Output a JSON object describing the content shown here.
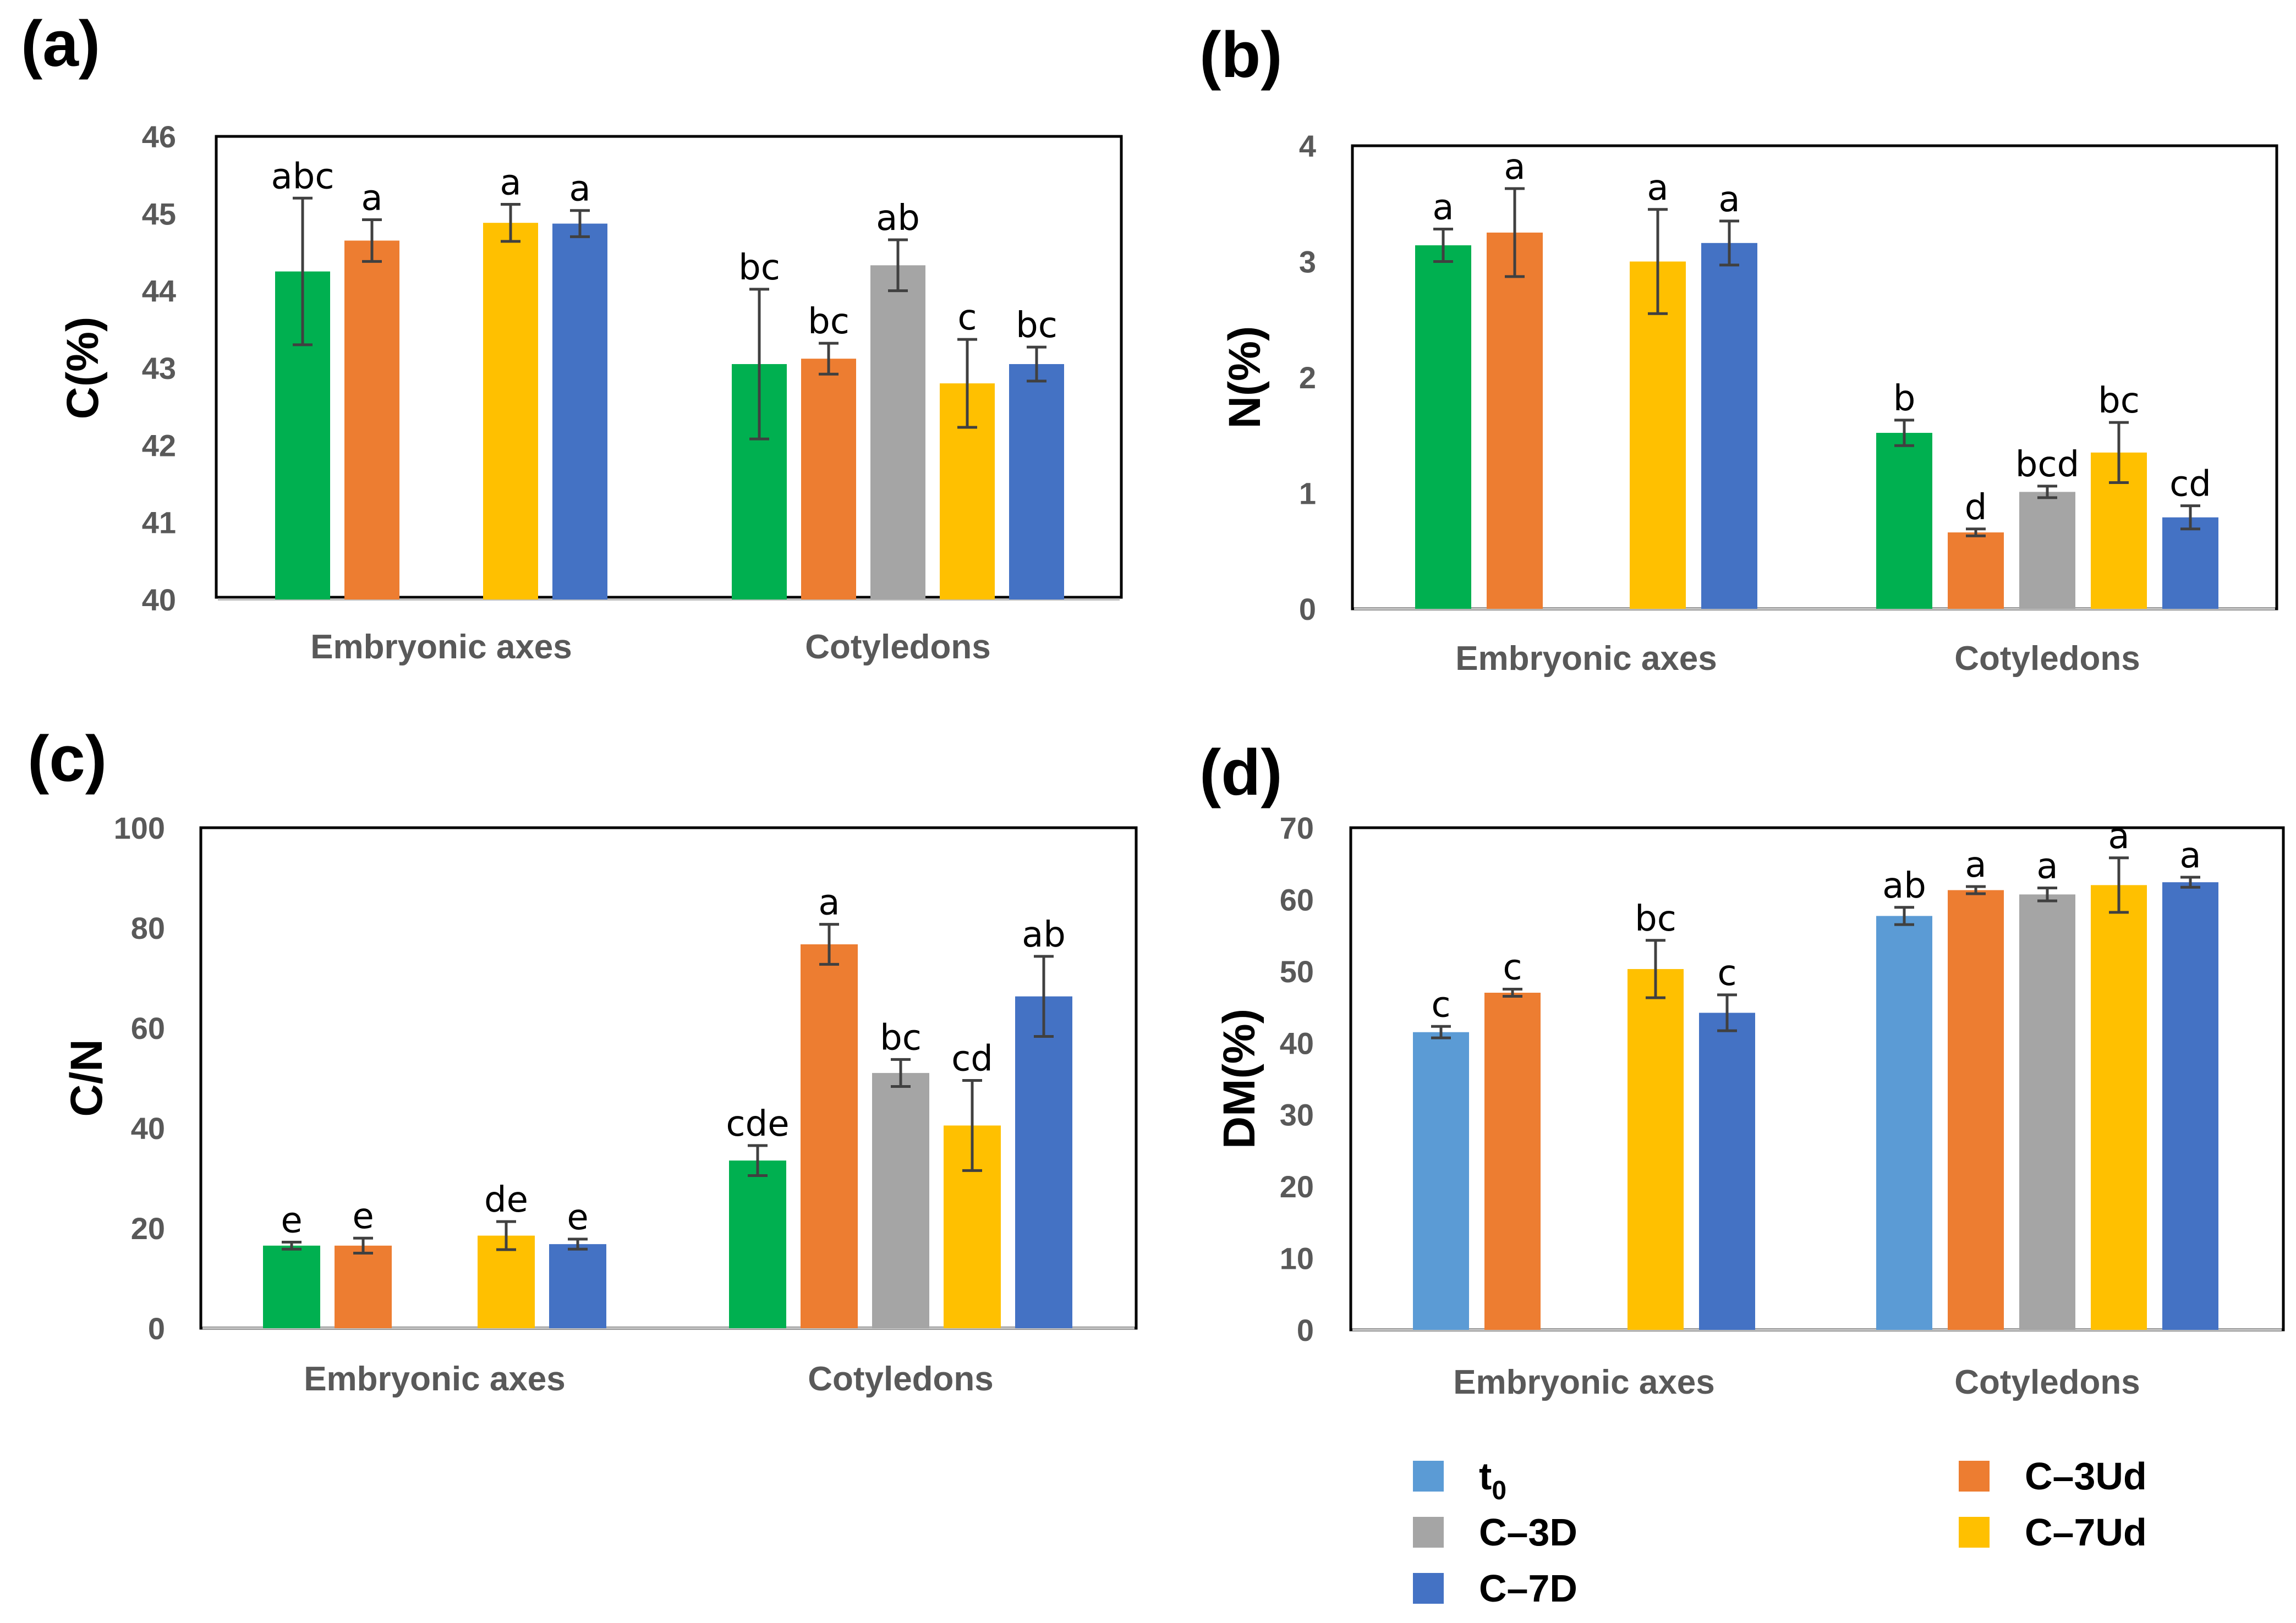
{
  "legend": {
    "items": [
      {
        "key": "t0",
        "label": "t",
        "sub": "0",
        "color": "#5B9BD5"
      },
      {
        "key": "c3d",
        "label": "C–3D",
        "sub": "",
        "color": "#A5A5A5"
      },
      {
        "key": "c7d",
        "label": "C–7D",
        "sub": "",
        "color": "#4472C4"
      },
      {
        "key": "c3ud",
        "label": "C–3Ud",
        "sub": "",
        "color": "#ED7D31"
      },
      {
        "key": "c7ud",
        "label": "C–7Ud",
        "sub": "",
        "color": "#FFC000"
      }
    ]
  },
  "chart_data": [
    {
      "panel": "(a)",
      "type": "bar",
      "ylabel": "C(%)",
      "ylim": [
        40,
        46
      ],
      "yticks": [
        40,
        41,
        42,
        43,
        44,
        45,
        46
      ],
      "groups": [
        {
          "name": "Embryonic axes",
          "bars": [
            {
              "series": "green",
              "color": "#00B050",
              "value": 44.25,
              "err": 0.95,
              "label": "abc"
            },
            {
              "series": "c3ud",
              "color": "#ED7D31",
              "value": 44.65,
              "err": 0.27,
              "label": "a"
            },
            null,
            {
              "series": "c7ud",
              "color": "#FFC000",
              "value": 44.88,
              "err": 0.24,
              "label": "a"
            },
            {
              "series": "c7d",
              "color": "#4472C4",
              "value": 44.87,
              "err": 0.17,
              "label": "a"
            }
          ]
        },
        {
          "name": "Cotyledons",
          "bars": [
            {
              "series": "green",
              "color": "#00B050",
              "value": 43.05,
              "err": 0.97,
              "label": "bc"
            },
            {
              "series": "c3ud",
              "color": "#ED7D31",
              "value": 43.12,
              "err": 0.2,
              "label": "bc"
            },
            {
              "series": "c3d",
              "color": "#A5A5A5",
              "value": 44.33,
              "err": 0.33,
              "label": "ab"
            },
            {
              "series": "c7ud",
              "color": "#FFC000",
              "value": 42.8,
              "err": 0.57,
              "label": "c"
            },
            {
              "series": "c7d",
              "color": "#4472C4",
              "value": 43.05,
              "err": 0.22,
              "label": "bc"
            }
          ]
        }
      ]
    },
    {
      "panel": "(b)",
      "type": "bar",
      "ylabel": "N(%)",
      "ylim": [
        0,
        4
      ],
      "yticks": [
        0,
        1,
        2,
        3,
        4
      ],
      "groups": [
        {
          "name": "Embryonic axes",
          "bars": [
            {
              "series": "green",
              "color": "#00B050",
              "value": 3.14,
              "err": 0.14,
              "label": "a"
            },
            {
              "series": "c3ud",
              "color": "#ED7D31",
              "value": 3.25,
              "err": 0.38,
              "label": "a"
            },
            null,
            {
              "series": "c7ud",
              "color": "#FFC000",
              "value": 3.0,
              "err": 0.45,
              "label": "a"
            },
            {
              "series": "c7d",
              "color": "#4472C4",
              "value": 3.16,
              "err": 0.19,
              "label": "a"
            }
          ]
        },
        {
          "name": "Cotyledons",
          "bars": [
            {
              "series": "green",
              "color": "#00B050",
              "value": 1.52,
              "err": 0.11,
              "label": "b"
            },
            {
              "series": "c3ud",
              "color": "#ED7D31",
              "value": 0.66,
              "err": 0.03,
              "label": "d"
            },
            {
              "series": "c3d",
              "color": "#A5A5A5",
              "value": 1.01,
              "err": 0.05,
              "label": "bcd"
            },
            {
              "series": "c7ud",
              "color": "#FFC000",
              "value": 1.35,
              "err": 0.26,
              "label": "bc"
            },
            {
              "series": "c7d",
              "color": "#4472C4",
              "value": 0.79,
              "err": 0.1,
              "label": "cd"
            }
          ]
        }
      ]
    },
    {
      "panel": "(c)",
      "type": "bar",
      "ylabel": "C/N",
      "ylim": [
        0,
        100
      ],
      "yticks": [
        0,
        20,
        40,
        60,
        80,
        100
      ],
      "groups": [
        {
          "name": "Embryonic axes",
          "bars": [
            {
              "series": "green",
              "color": "#00B050",
              "value": 16.5,
              "err": 0.7,
              "label": "e"
            },
            {
              "series": "c3ud",
              "color": "#ED7D31",
              "value": 16.5,
              "err": 1.5,
              "label": "e"
            },
            null,
            {
              "series": "c7ud",
              "color": "#FFC000",
              "value": 18.5,
              "err": 2.8,
              "label": "de"
            },
            {
              "series": "c7d",
              "color": "#4472C4",
              "value": 16.8,
              "err": 1.0,
              "label": "e"
            }
          ]
        },
        {
          "name": "Cotyledons",
          "bars": [
            {
              "series": "green",
              "color": "#00B050",
              "value": 33.5,
              "err": 3.0,
              "label": "cde"
            },
            {
              "series": "c3ud",
              "color": "#ED7D31",
              "value": 76.7,
              "err": 4.0,
              "label": "a"
            },
            {
              "series": "c3d",
              "color": "#A5A5A5",
              "value": 51.0,
              "err": 2.7,
              "label": "bc"
            },
            {
              "series": "c7ud",
              "color": "#FFC000",
              "value": 40.5,
              "err": 9.0,
              "label": "cd"
            },
            {
              "series": "c7d",
              "color": "#4472C4",
              "value": 66.3,
              "err": 8.0,
              "label": "ab"
            }
          ]
        }
      ]
    },
    {
      "panel": "(d)",
      "type": "bar",
      "ylabel": "DM(%)",
      "ylim": [
        0,
        70
      ],
      "yticks": [
        0,
        10,
        20,
        30,
        40,
        50,
        60,
        70
      ],
      "groups": [
        {
          "name": "Embryonic axes",
          "bars": [
            {
              "series": "t0",
              "color": "#5B9BD5",
              "value": 41.5,
              "err": 0.8,
              "label": "c"
            },
            {
              "series": "c3ud",
              "color": "#ED7D31",
              "value": 47.0,
              "err": 0.5,
              "label": "c"
            },
            null,
            {
              "series": "c7ud",
              "color": "#FFC000",
              "value": 50.3,
              "err": 4.0,
              "label": "bc"
            },
            {
              "series": "c7d",
              "color": "#4472C4",
              "value": 44.2,
              "err": 2.5,
              "label": "c"
            }
          ]
        },
        {
          "name": "Cotyledons",
          "bars": [
            {
              "series": "t0",
              "color": "#5B9BD5",
              "value": 57.7,
              "err": 1.2,
              "label": "ab"
            },
            {
              "series": "c3ud",
              "color": "#ED7D31",
              "value": 61.3,
              "err": 0.5,
              "label": "a"
            },
            {
              "series": "c3d",
              "color": "#A5A5A5",
              "value": 60.7,
              "err": 0.9,
              "label": "a"
            },
            {
              "series": "c7ud",
              "color": "#FFC000",
              "value": 62.0,
              "err": 3.8,
              "label": "a"
            },
            {
              "series": "c7d",
              "color": "#4472C4",
              "value": 62.4,
              "err": 0.7,
              "label": "a"
            }
          ]
        }
      ]
    }
  ]
}
